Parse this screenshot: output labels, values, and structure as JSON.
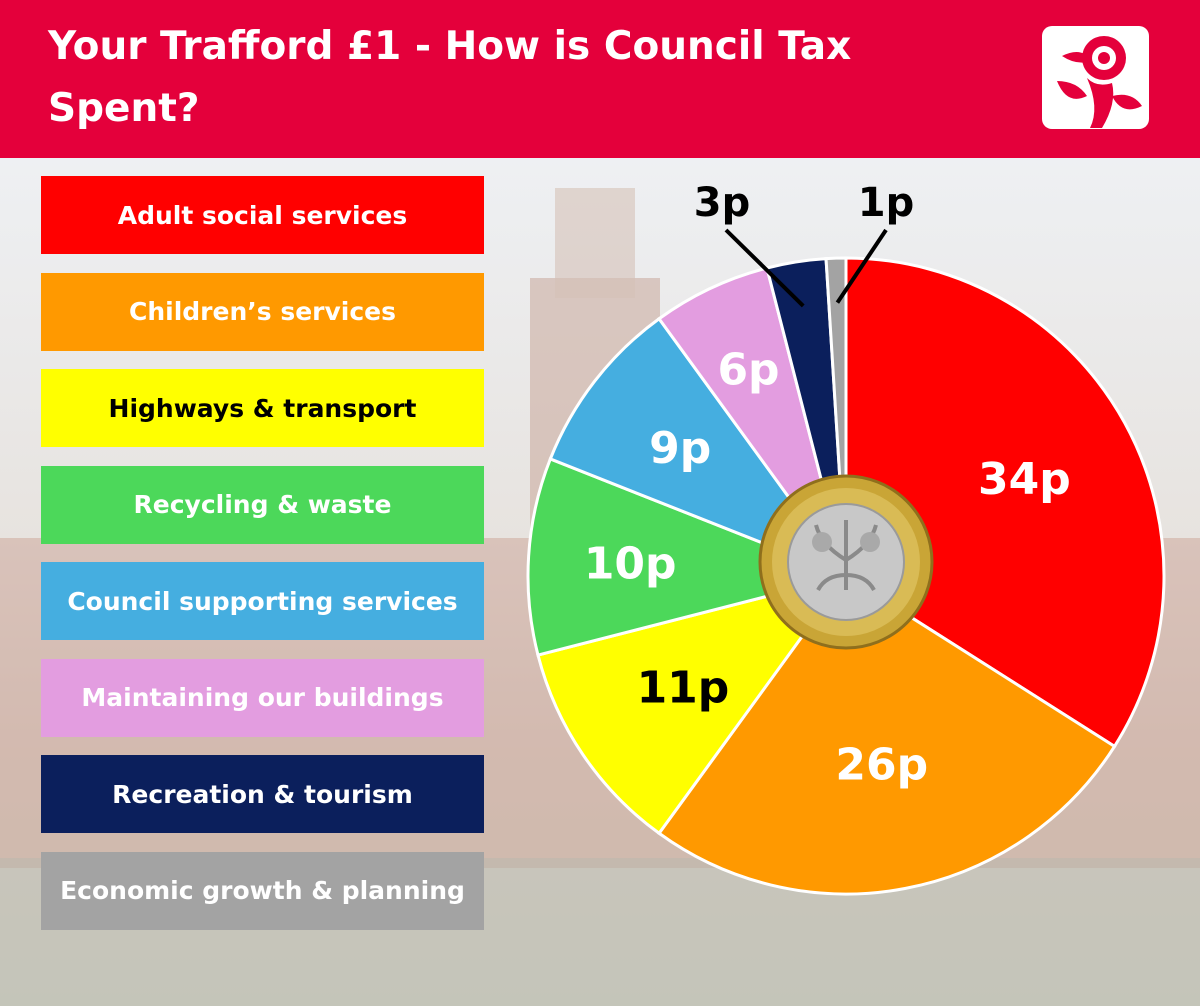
{
  "header": {
    "title": "Your Trafford £1 - How is Council Tax Spent?",
    "background": "#e4003b",
    "logo_icon": "rose-icon"
  },
  "coin_icon": "one-pound-coin-icon",
  "chart_data": {
    "type": "pie",
    "title": "Your Trafford £1 - How is Council Tax Spent?",
    "unit": "p",
    "legend_placement": "left",
    "slices": [
      {
        "label": "Adult social services",
        "value": 34,
        "display": "34p",
        "color": "#ff0000",
        "text_color": "#ffffff"
      },
      {
        "label": "Children’s services",
        "value": 26,
        "display": "26p",
        "color": "#ff9900",
        "text_color": "#ffffff"
      },
      {
        "label": "Highways & transport",
        "value": 11,
        "display": "11p",
        "color": "#ffff00",
        "text_color": "#000000"
      },
      {
        "label": "Recycling & waste",
        "value": 10,
        "display": "10p",
        "color": "#4cd85a",
        "text_color": "#ffffff"
      },
      {
        "label": "Council supporting services",
        "value": 9,
        "display": "9p",
        "color": "#45aee0",
        "text_color": "#ffffff"
      },
      {
        "label": "Maintaining our buildings",
        "value": 6,
        "display": "6p",
        "color": "#e39de0",
        "text_color": "#ffffff"
      },
      {
        "label": "Recreation & tourism",
        "value": 3,
        "display": "3p",
        "color": "#0b1f5c",
        "text_color": "#ffffff"
      },
      {
        "label": "Economic growth & planning",
        "value": 1,
        "display": "1p",
        "color": "#a3a3a3",
        "text_color": "#ffffff"
      }
    ]
  }
}
